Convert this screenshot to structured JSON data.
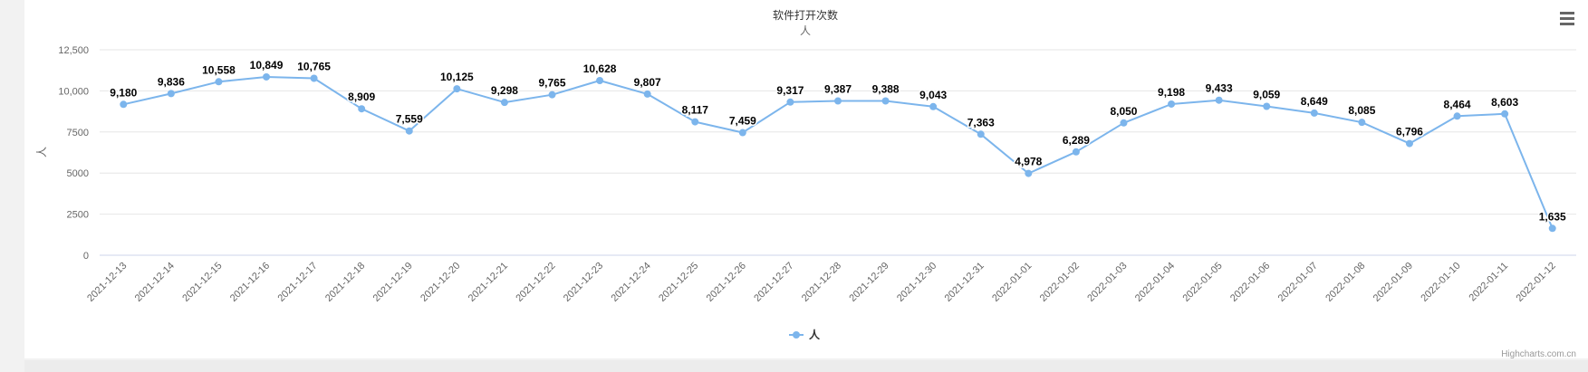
{
  "chart_data": {
    "type": "line",
    "title": "软件打开次数",
    "subtitle": "人",
    "ylabel": "人",
    "ylim": [
      0,
      12500
    ],
    "yticks": [
      0,
      2500,
      5000,
      7500,
      10000,
      12500
    ],
    "ytick_labels": [
      "0",
      "2500",
      "5000",
      "7500",
      "10,000",
      "12,500"
    ],
    "categories": [
      "2021-12-13",
      "2021-12-14",
      "2021-12-15",
      "2021-12-16",
      "2021-12-17",
      "2021-12-18",
      "2021-12-19",
      "2021-12-20",
      "2021-12-21",
      "2021-12-22",
      "2021-12-23",
      "2021-12-24",
      "2021-12-25",
      "2021-12-26",
      "2021-12-27",
      "2021-12-28",
      "2021-12-29",
      "2021-12-30",
      "2021-12-31",
      "2022-01-01",
      "2022-01-02",
      "2022-01-03",
      "2022-01-04",
      "2022-01-05",
      "2022-01-06",
      "2022-01-07",
      "2022-01-08",
      "2022-01-09",
      "2022-01-10",
      "2022-01-11",
      "2022-01-12"
    ],
    "series": [
      {
        "name": "人",
        "values": [
          9180,
          9836,
          10558,
          10849,
          10765,
          8909,
          7559,
          10125,
          9298,
          9765,
          10628,
          9807,
          8117,
          7459,
          9317,
          9387,
          9388,
          9043,
          7363,
          4978,
          6289,
          8050,
          9198,
          9433,
          9059,
          8649,
          8085,
          6796,
          8464,
          8603,
          1635
        ],
        "labels": [
          "9,180",
          "9,836",
          "10,558",
          "10,849",
          "10,765",
          "8,909",
          "7,559",
          "10,125",
          "9,298",
          "9,765",
          "10,628",
          "9,807",
          "8,117",
          "7,459",
          "9,317",
          "9,387",
          "9,388",
          "9,043",
          "7,363",
          "4,978",
          "6,289",
          "8,050",
          "9,198",
          "9,433",
          "9,059",
          "8,649",
          "8,085",
          "6,796",
          "8,464",
          "8,603",
          "1,635"
        ]
      }
    ],
    "grid": true,
    "legend": "bottom-center",
    "color": "#7cb5ec"
  },
  "credits": "Highcharts.com.cn",
  "menu_icon": "hamburger-menu-icon"
}
